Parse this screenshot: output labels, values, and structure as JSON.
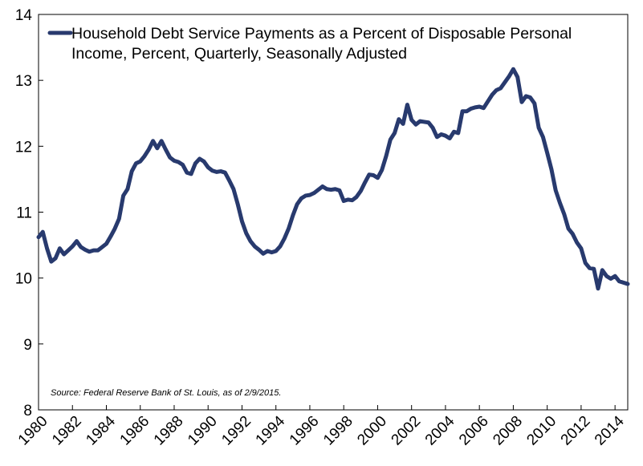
{
  "chart_data": {
    "type": "line",
    "title": "",
    "xlabel": "",
    "ylabel": "",
    "xlim": [
      1980,
      2014.75
    ],
    "ylim": [
      8,
      14
    ],
    "y_ticks": [
      "8",
      "9",
      "10",
      "11",
      "12",
      "13",
      "14"
    ],
    "x_ticks": [
      "1980",
      "1982",
      "1984",
      "1986",
      "1988",
      "1990",
      "1992",
      "1994",
      "1996",
      "1998",
      "2000",
      "2002",
      "2004",
      "2006",
      "2008",
      "2010",
      "2012",
      "2014"
    ],
    "grid": false,
    "legend_position": "top-left",
    "line_color": "#283a6e",
    "series": [
      {
        "name": "Household Debt Service Payments as a Percent of Disposable Personal Income, Percent, Quarterly, Seasonally Adjusted",
        "points": [
          [
            1980.0,
            10.62
          ],
          [
            1980.25,
            10.7
          ],
          [
            1980.5,
            10.45
          ],
          [
            1980.75,
            10.25
          ],
          [
            1981.0,
            10.3
          ],
          [
            1981.25,
            10.45
          ],
          [
            1981.5,
            10.36
          ],
          [
            1981.75,
            10.42
          ],
          [
            1982.0,
            10.48
          ],
          [
            1982.25,
            10.56
          ],
          [
            1982.5,
            10.47
          ],
          [
            1982.75,
            10.43
          ],
          [
            1983.0,
            10.4
          ],
          [
            1983.25,
            10.42
          ],
          [
            1983.5,
            10.42
          ],
          [
            1983.75,
            10.47
          ],
          [
            1984.0,
            10.52
          ],
          [
            1984.25,
            10.63
          ],
          [
            1984.5,
            10.75
          ],
          [
            1984.75,
            10.9
          ],
          [
            1985.0,
            11.25
          ],
          [
            1985.25,
            11.35
          ],
          [
            1985.5,
            11.62
          ],
          [
            1985.75,
            11.74
          ],
          [
            1986.0,
            11.77
          ],
          [
            1986.25,
            11.85
          ],
          [
            1986.5,
            11.95
          ],
          [
            1986.75,
            12.08
          ],
          [
            1987.0,
            11.97
          ],
          [
            1987.25,
            12.08
          ],
          [
            1987.5,
            11.95
          ],
          [
            1987.75,
            11.83
          ],
          [
            1988.0,
            11.78
          ],
          [
            1988.25,
            11.76
          ],
          [
            1988.5,
            11.72
          ],
          [
            1988.75,
            11.6
          ],
          [
            1989.0,
            11.58
          ],
          [
            1989.25,
            11.74
          ],
          [
            1989.5,
            11.81
          ],
          [
            1989.75,
            11.77
          ],
          [
            1990.0,
            11.68
          ],
          [
            1990.25,
            11.63
          ],
          [
            1990.5,
            11.61
          ],
          [
            1990.75,
            11.62
          ],
          [
            1991.0,
            11.6
          ],
          [
            1991.25,
            11.48
          ],
          [
            1991.5,
            11.35
          ],
          [
            1991.75,
            11.12
          ],
          [
            1992.0,
            10.86
          ],
          [
            1992.25,
            10.68
          ],
          [
            1992.5,
            10.56
          ],
          [
            1992.75,
            10.48
          ],
          [
            1993.0,
            10.43
          ],
          [
            1993.25,
            10.37
          ],
          [
            1993.5,
            10.41
          ],
          [
            1993.75,
            10.39
          ],
          [
            1994.0,
            10.41
          ],
          [
            1994.25,
            10.48
          ],
          [
            1994.5,
            10.6
          ],
          [
            1994.75,
            10.75
          ],
          [
            1995.0,
            10.95
          ],
          [
            1995.25,
            11.12
          ],
          [
            1995.5,
            11.21
          ],
          [
            1995.75,
            11.25
          ],
          [
            1996.0,
            11.26
          ],
          [
            1996.25,
            11.29
          ],
          [
            1996.5,
            11.34
          ],
          [
            1996.75,
            11.39
          ],
          [
            1997.0,
            11.35
          ],
          [
            1997.25,
            11.34
          ],
          [
            1997.5,
            11.35
          ],
          [
            1997.75,
            11.33
          ],
          [
            1998.0,
            11.17
          ],
          [
            1998.25,
            11.19
          ],
          [
            1998.5,
            11.18
          ],
          [
            1998.75,
            11.23
          ],
          [
            1999.0,
            11.32
          ],
          [
            1999.25,
            11.45
          ],
          [
            1999.5,
            11.57
          ],
          [
            1999.75,
            11.56
          ],
          [
            2000.0,
            11.52
          ],
          [
            2000.25,
            11.64
          ],
          [
            2000.5,
            11.85
          ],
          [
            2000.75,
            12.1
          ],
          [
            2001.0,
            12.2
          ],
          [
            2001.25,
            12.41
          ],
          [
            2001.5,
            12.34
          ],
          [
            2001.75,
            12.63
          ],
          [
            2002.0,
            12.4
          ],
          [
            2002.25,
            12.33
          ],
          [
            2002.5,
            12.38
          ],
          [
            2002.75,
            12.37
          ],
          [
            2003.0,
            12.36
          ],
          [
            2003.25,
            12.28
          ],
          [
            2003.5,
            12.14
          ],
          [
            2003.75,
            12.18
          ],
          [
            2004.0,
            12.16
          ],
          [
            2004.25,
            12.12
          ],
          [
            2004.5,
            12.22
          ],
          [
            2004.75,
            12.2
          ],
          [
            2005.0,
            12.53
          ],
          [
            2005.25,
            12.53
          ],
          [
            2005.5,
            12.57
          ],
          [
            2005.75,
            12.59
          ],
          [
            2006.0,
            12.6
          ],
          [
            2006.25,
            12.58
          ],
          [
            2006.5,
            12.68
          ],
          [
            2006.75,
            12.78
          ],
          [
            2007.0,
            12.85
          ],
          [
            2007.25,
            12.88
          ],
          [
            2007.5,
            12.97
          ],
          [
            2007.75,
            13.06
          ],
          [
            2008.0,
            13.17
          ],
          [
            2008.25,
            13.05
          ],
          [
            2008.5,
            12.67
          ],
          [
            2008.75,
            12.76
          ],
          [
            2009.0,
            12.74
          ],
          [
            2009.25,
            12.65
          ],
          [
            2009.5,
            12.28
          ],
          [
            2009.75,
            12.14
          ],
          [
            2010.0,
            11.9
          ],
          [
            2010.25,
            11.65
          ],
          [
            2010.5,
            11.33
          ],
          [
            2010.75,
            11.14
          ],
          [
            2011.0,
            10.97
          ],
          [
            2011.25,
            10.75
          ],
          [
            2011.5,
            10.67
          ],
          [
            2011.75,
            10.54
          ],
          [
            2012.0,
            10.45
          ],
          [
            2012.25,
            10.23
          ],
          [
            2012.5,
            10.15
          ],
          [
            2012.75,
            10.14
          ],
          [
            2013.0,
            9.84
          ],
          [
            2013.25,
            10.12
          ],
          [
            2013.5,
            10.03
          ],
          [
            2013.75,
            9.99
          ],
          [
            2014.0,
            10.03
          ],
          [
            2014.25,
            9.95
          ],
          [
            2014.5,
            9.93
          ],
          [
            2014.75,
            9.91
          ]
        ]
      }
    ],
    "annotations": [
      "Source: Federal Reserve Bank of St. Louis, as of 2/9/2015."
    ]
  },
  "legend": {
    "line1": "Household Debt Service Payments as a Percent of Disposable Personal",
    "line2": "Income, Percent, Quarterly, Seasonally Adjusted"
  },
  "source_note": "Source: Federal Reserve Bank of St. Louis, as of 2/9/2015."
}
